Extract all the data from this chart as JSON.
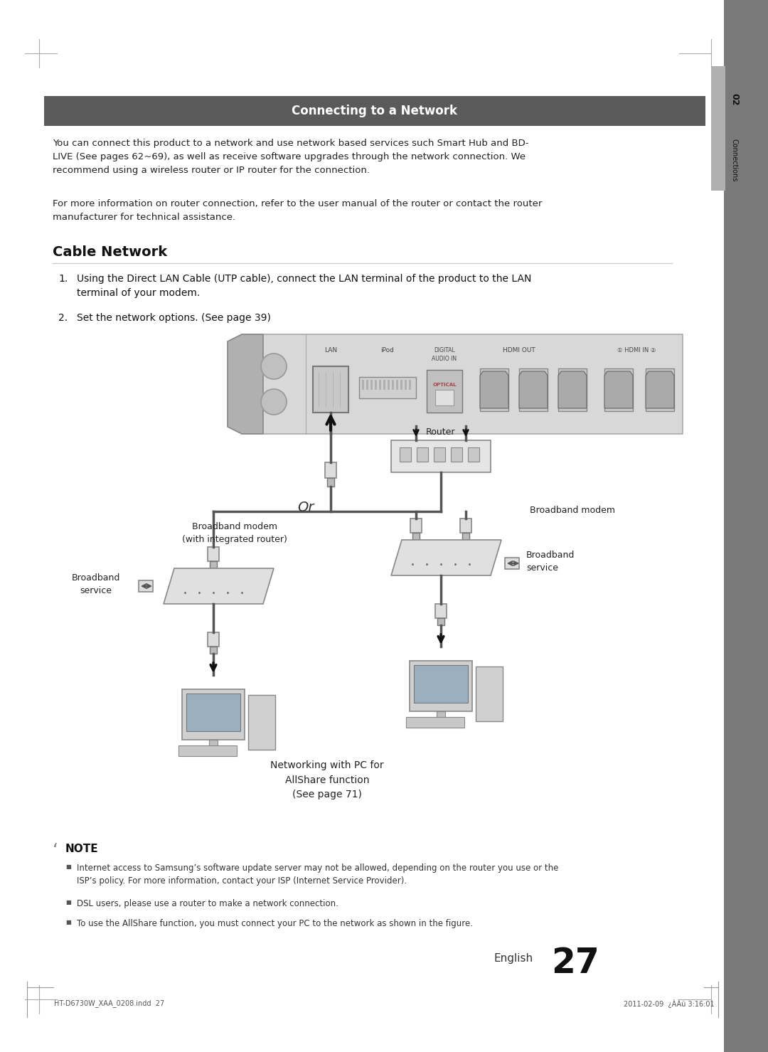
{
  "bg_color": "#ffffff",
  "page_width": 10.8,
  "page_height": 14.79,
  "header_bar_color": "#5a5a5a",
  "header_bar_text": "Connecting to a Network",
  "header_bar_text_color": "#ffffff",
  "body_text_1": "You can connect this product to a network and use network based services such Smart Hub and BD-\nLIVE (See pages 62~69), as well as receive software upgrades through the network connection. We\nrecommend using a wireless router or IP router for the connection.",
  "body_text_2": "For more information on router connection, refer to the user manual of the router or contact the router\nmanufacturer for technical assistance.",
  "section_title": "Cable Network",
  "step1": "Using the Direct LAN Cable (UTP cable), connect the LAN terminal of the product to the LAN\n   terminal of your modem.",
  "step2": "Set the network options. (See page 39)",
  "note_title": "NOTE",
  "note_1": "Internet access to Samsung’s software update server may not be allowed, depending on the router you use or the\nISP’s policy. For more information, contact your ISP (Internet Service Provider).",
  "note_2": "DSL users, please use a router to make a network connection.",
  "note_3": "To use the AllShare function, you must connect your PC to the network as shown in the figure.",
  "footer_left": "HT-D6730W_XAA_0208.indd  27",
  "footer_right": "2011-02-09  ¿ÀÀü 3:16:01",
  "page_num": "27",
  "page_label": "English",
  "sidebar_bg": "#7a7a7a",
  "sidebar_tab_bg": "#b0b0b0",
  "text_color": "#222222"
}
